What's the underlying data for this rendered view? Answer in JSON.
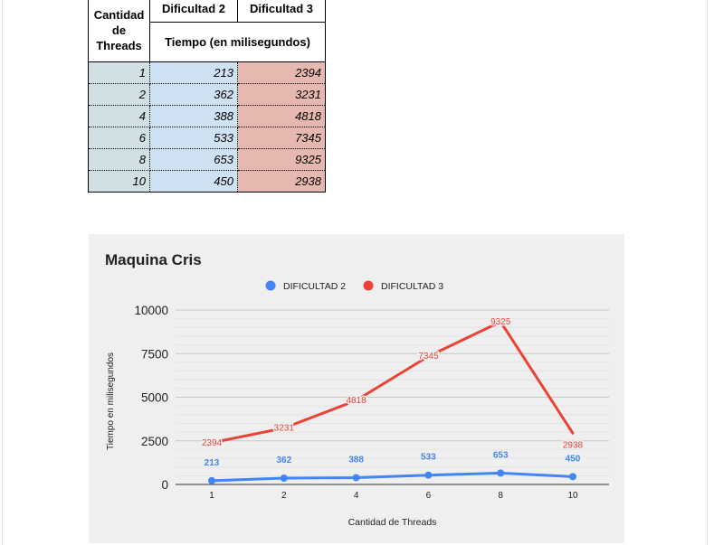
{
  "table": {
    "header_threads": "Cantidad de Threads",
    "header_d2": "Dificultad 2",
    "header_d3": "Dificultad 3",
    "header_unit": "Tiempo (en milisegundos)",
    "rows": [
      {
        "threads": "1",
        "d2": "213",
        "d3": "2394"
      },
      {
        "threads": "2",
        "d2": "362",
        "d3": "3231"
      },
      {
        "threads": "4",
        "d2": "388",
        "d3": "4818"
      },
      {
        "threads": "6",
        "d2": "533",
        "d3": "7345"
      },
      {
        "threads": "8",
        "d2": "653",
        "d3": "9325"
      },
      {
        "threads": "10",
        "d2": "450",
        "d3": "2938"
      }
    ]
  },
  "chart_data": {
    "type": "line",
    "title": "Maquina Cris",
    "xlabel": "Cantidad de Threads",
    "ylabel": "Tiempo en milisegundos",
    "categories": [
      "1",
      "2",
      "4",
      "6",
      "8",
      "10"
    ],
    "yticks": [
      "0",
      "2500",
      "5000",
      "7500",
      "10000"
    ],
    "ylim": [
      0,
      10000
    ],
    "grid": true,
    "legend_position": "top",
    "series": [
      {
        "name": "DIFICULTAD 2",
        "color": "#4285f4",
        "values": [
          213,
          362,
          388,
          533,
          653,
          450
        ],
        "labels": [
          "213",
          "362",
          "388",
          "533",
          "653",
          "450"
        ],
        "markers": true
      },
      {
        "name": "DIFICULTAD 3",
        "color": "#ea4335",
        "values": [
          2394,
          3231,
          4818,
          7345,
          9325,
          2938
        ],
        "labels": [
          "2394",
          "3231",
          "4818",
          "7345",
          "9325",
          "2938"
        ],
        "markers": false
      }
    ]
  }
}
